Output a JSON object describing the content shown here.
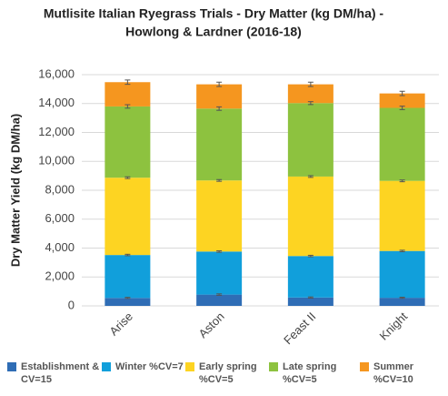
{
  "chart_data": {
    "type": "stacked_bar",
    "title": [
      "Mutlisite Italian Ryegrass Trials - Dry Matter (kg DM/ha) -",
      "Howlong & Lardner (2016-18)"
    ],
    "y_label": "Dry Matter Yield (kg DM/ha)",
    "categories": [
      "Arise",
      "Aston",
      "Feast II",
      "Knight"
    ],
    "ylim": [
      0,
      16000
    ],
    "yticks": [
      0,
      {
        "value": 2000,
        "label": "2,000"
      },
      {
        "value": 4000,
        "label": "4,000"
      },
      {
        "value": 6000,
        "label": "6,000"
      },
      {
        "value": 8000,
        "label": "8,000"
      },
      {
        "value": 10000,
        "label": "10,000"
      },
      {
        "value": 12000,
        "label": "12,000"
      },
      {
        "value": 14000,
        "label": "14,000"
      },
      {
        "value": 16000,
        "label": "16,000"
      }
    ],
    "grid": true,
    "legend": "bottom",
    "series": [
      {
        "name": "Establishment & CV=15",
        "color": "#2f6db5",
        "values": [
          550,
          780,
          580,
          560
        ],
        "errors": [
          40,
          50,
          40,
          40
        ]
      },
      {
        "name": "Winter %CV=7",
        "color": "#119fdb",
        "values": [
          2970,
          2980,
          2870,
          3240
        ],
        "errors": [
          50,
          50,
          50,
          50
        ]
      },
      {
        "name": "Early spring %CV=5",
        "color": "#fdd422",
        "values": [
          5350,
          4920,
          5500,
          4850
        ],
        "errors": [
          60,
          60,
          60,
          60
        ]
      },
      {
        "name": "Late spring %CV=5",
        "color": "#8dc23f",
        "values": [
          4930,
          4970,
          5080,
          5050
        ],
        "errors": [
          120,
          120,
          100,
          120
        ]
      },
      {
        "name": "Summer %CV=10",
        "color": "#f5961f",
        "values": [
          1680,
          1680,
          1300,
          1000
        ],
        "errors": [
          150,
          150,
          150,
          150
        ]
      }
    ]
  }
}
